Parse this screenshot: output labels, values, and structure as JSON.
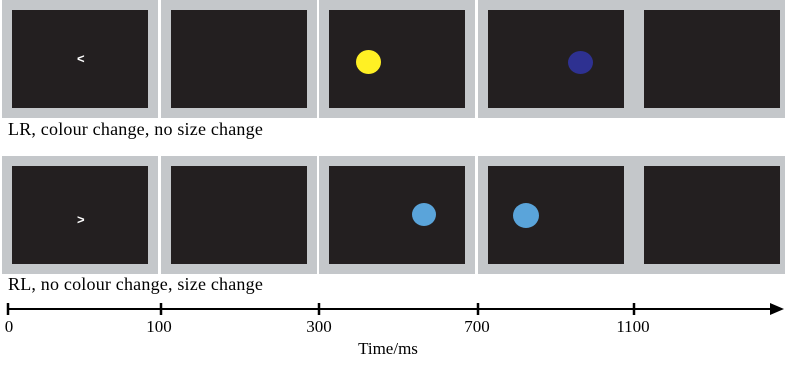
{
  "rows": [
    {
      "caption": "LR, colour change, no size change",
      "frames": [
        {
          "symbol": "<"
        },
        {
          "symbol": ""
        },
        {
          "dot_color": "#fff024",
          "dot_size": "large"
        },
        {
          "dot_color": "#2e3191",
          "dot_size": "large"
        },
        {
          "symbol": ""
        }
      ]
    },
    {
      "caption": "RL, no colour change, size change",
      "frames": [
        {
          "symbol": ">"
        },
        {
          "symbol": ""
        },
        {
          "dot_color": "#5aa4da",
          "dot_size": "small"
        },
        {
          "dot_color": "#5aa4da",
          "dot_size": "large"
        },
        {
          "symbol": ""
        }
      ]
    }
  ],
  "timeline": {
    "ticks": [
      "0",
      "100",
      "300",
      "700",
      "1100"
    ],
    "axis_label": "Time/ms"
  }
}
